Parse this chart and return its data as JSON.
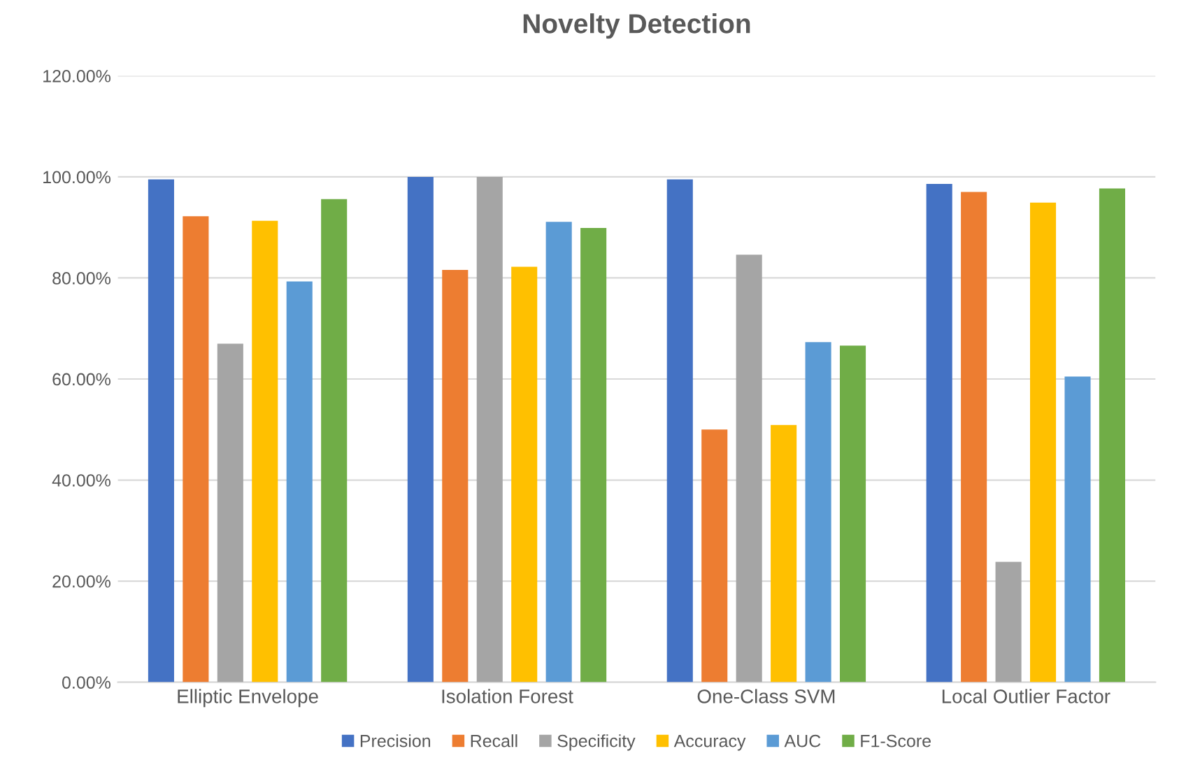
{
  "chart_data": {
    "type": "bar",
    "title": "Novelty Detection",
    "categories": [
      "Elliptic Envelope",
      "Isolation Forest",
      "One-Class SVM",
      "Local Outlier Factor"
    ],
    "series": [
      {
        "name": "Precision",
        "color": "#4472c4",
        "values": [
          99.5,
          100,
          99.5,
          98.6
        ]
      },
      {
        "name": "Recall",
        "color": "#ed7d31",
        "values": [
          92.2,
          81.6,
          50.0,
          97.0
        ]
      },
      {
        "name": "Specificity",
        "color": "#a5a5a5",
        "values": [
          67.0,
          100,
          84.6,
          23.8
        ]
      },
      {
        "name": "Accuracy",
        "color": "#ffc000",
        "values": [
          91.3,
          82.2,
          50.9,
          94.9
        ]
      },
      {
        "name": "AUC",
        "color": "#5b9bd5",
        "values": [
          79.3,
          91.1,
          67.3,
          60.5
        ]
      },
      {
        "name": "F1-Score",
        "color": "#70ad47",
        "values": [
          95.6,
          89.9,
          66.6,
          97.7
        ]
      }
    ],
    "ylim": [
      0,
      120
    ],
    "yticks": [
      {
        "value": 0,
        "label": "0.00%"
      },
      {
        "value": 20,
        "label": "20.00%"
      },
      {
        "value": 40,
        "label": "40.00%"
      },
      {
        "value": 60,
        "label": "60.00%"
      },
      {
        "value": 80,
        "label": "80.00%"
      },
      {
        "value": 100,
        "label": "100.00%"
      },
      {
        "value": 120,
        "label": "120.00%"
      }
    ],
    "grid": "y",
    "legend": "bottom"
  }
}
